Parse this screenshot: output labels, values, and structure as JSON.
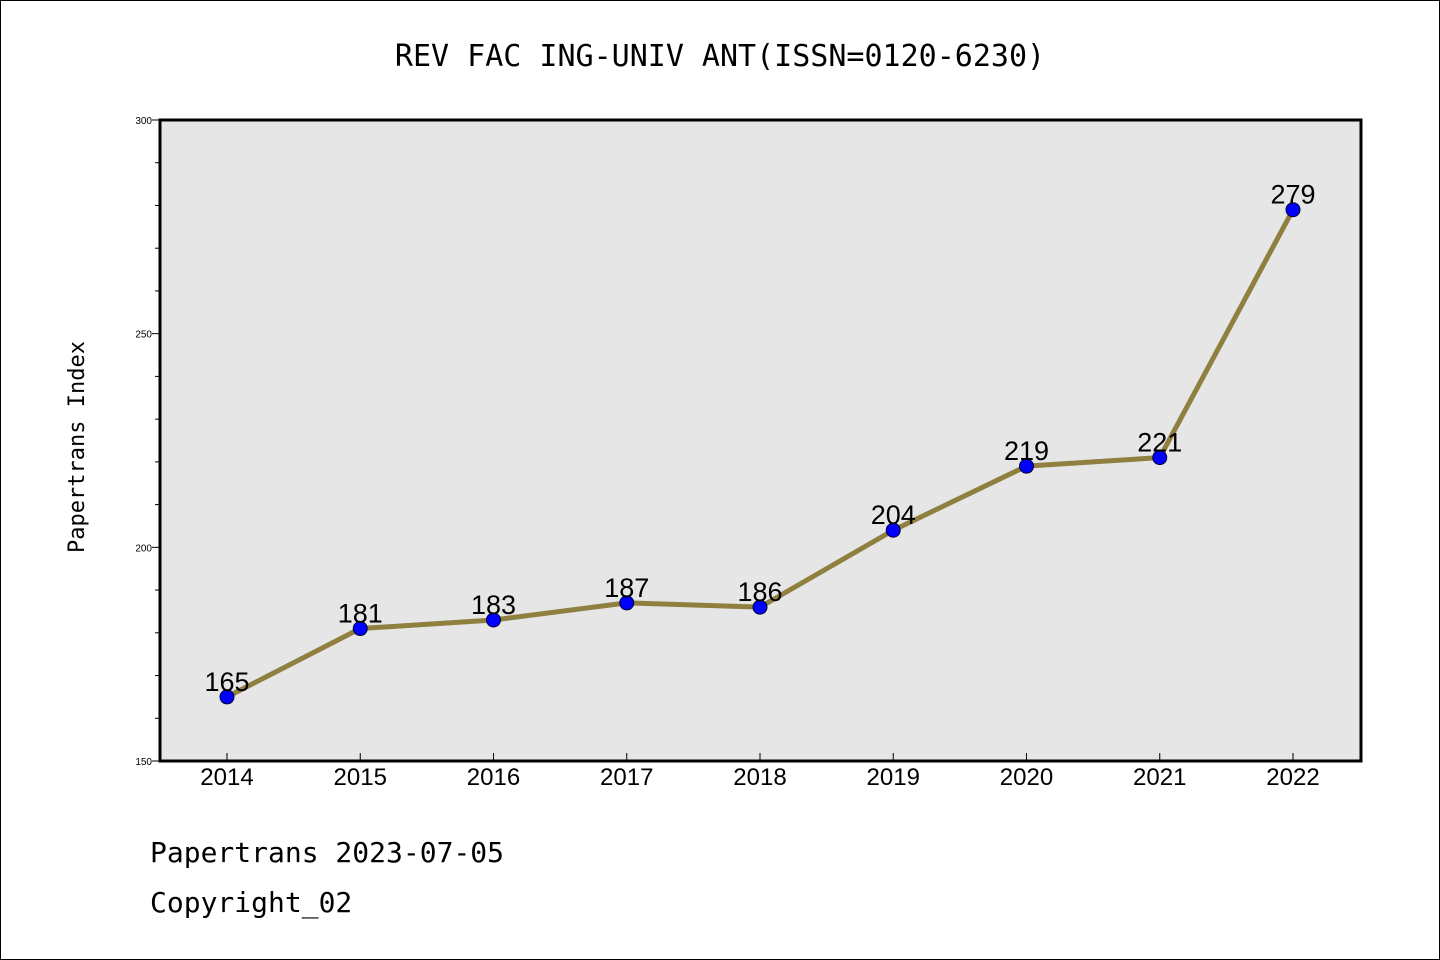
{
  "chart_data": {
    "type": "line",
    "title": "REV FAC ING-UNIV ANT(ISSN=0120-6230)",
    "xlabel": "",
    "ylabel": "Papertrans Index",
    "x": [
      "2014",
      "2015",
      "2016",
      "2017",
      "2018",
      "2019",
      "2020",
      "2021",
      "2022"
    ],
    "values": [
      165,
      181,
      183,
      187,
      186,
      204,
      219,
      221,
      279
    ],
    "data_labels": [
      "165",
      "181",
      "183",
      "187",
      "186",
      "204",
      "219",
      "221",
      "279"
    ],
    "ylim": [
      150,
      300
    ],
    "yticks": [
      "150",
      "200",
      "250",
      "300"
    ],
    "grid": false,
    "colors": {
      "line": "#8f8040",
      "marker": "#0000ff",
      "plot_bg": "#e6e6e6"
    }
  },
  "footer": {
    "line1": "Papertrans 2023-07-05",
    "line2": "Copyright_02"
  }
}
